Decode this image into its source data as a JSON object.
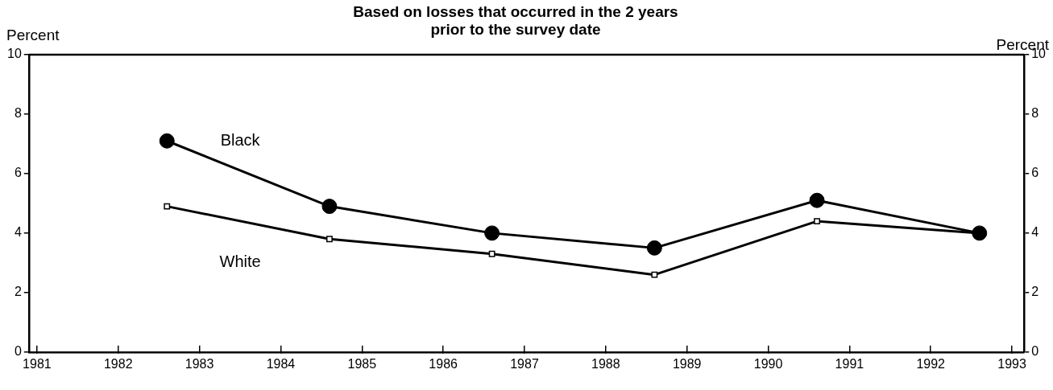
{
  "chart_data": {
    "type": "line",
    "title": "Based on losses that occurred in the 2 years\nprior to the survey date",
    "ylabel": "Percent",
    "y2label": "Percent",
    "x": [
      1982.6,
      1984.6,
      1986.6,
      1988.6,
      1990.6,
      1992.6
    ],
    "series": [
      {
        "name": "Black",
        "color": "#000000",
        "marker": "circle",
        "values": [
          7.1,
          4.9,
          4.0,
          3.5,
          5.1,
          4.0
        ]
      },
      {
        "name": "White",
        "color": "#000000",
        "marker": "square",
        "values": [
          4.9,
          3.8,
          3.3,
          2.6,
          4.4,
          4.0
        ]
      }
    ],
    "xlim": [
      1980.9,
      1993.15
    ],
    "xticks": [
      1981,
      1982,
      1983,
      1984,
      1985,
      1986,
      1987,
      1988,
      1989,
      1990,
      1991,
      1992,
      1993
    ],
    "ylim": [
      0,
      10
    ],
    "yticks": [
      0,
      2,
      4,
      6,
      8,
      10
    ],
    "y2lim": [
      0,
      10
    ],
    "y2ticks": [
      0,
      2,
      4,
      6,
      8,
      10
    ],
    "grid": false,
    "legend": false,
    "line_style": "solid"
  }
}
